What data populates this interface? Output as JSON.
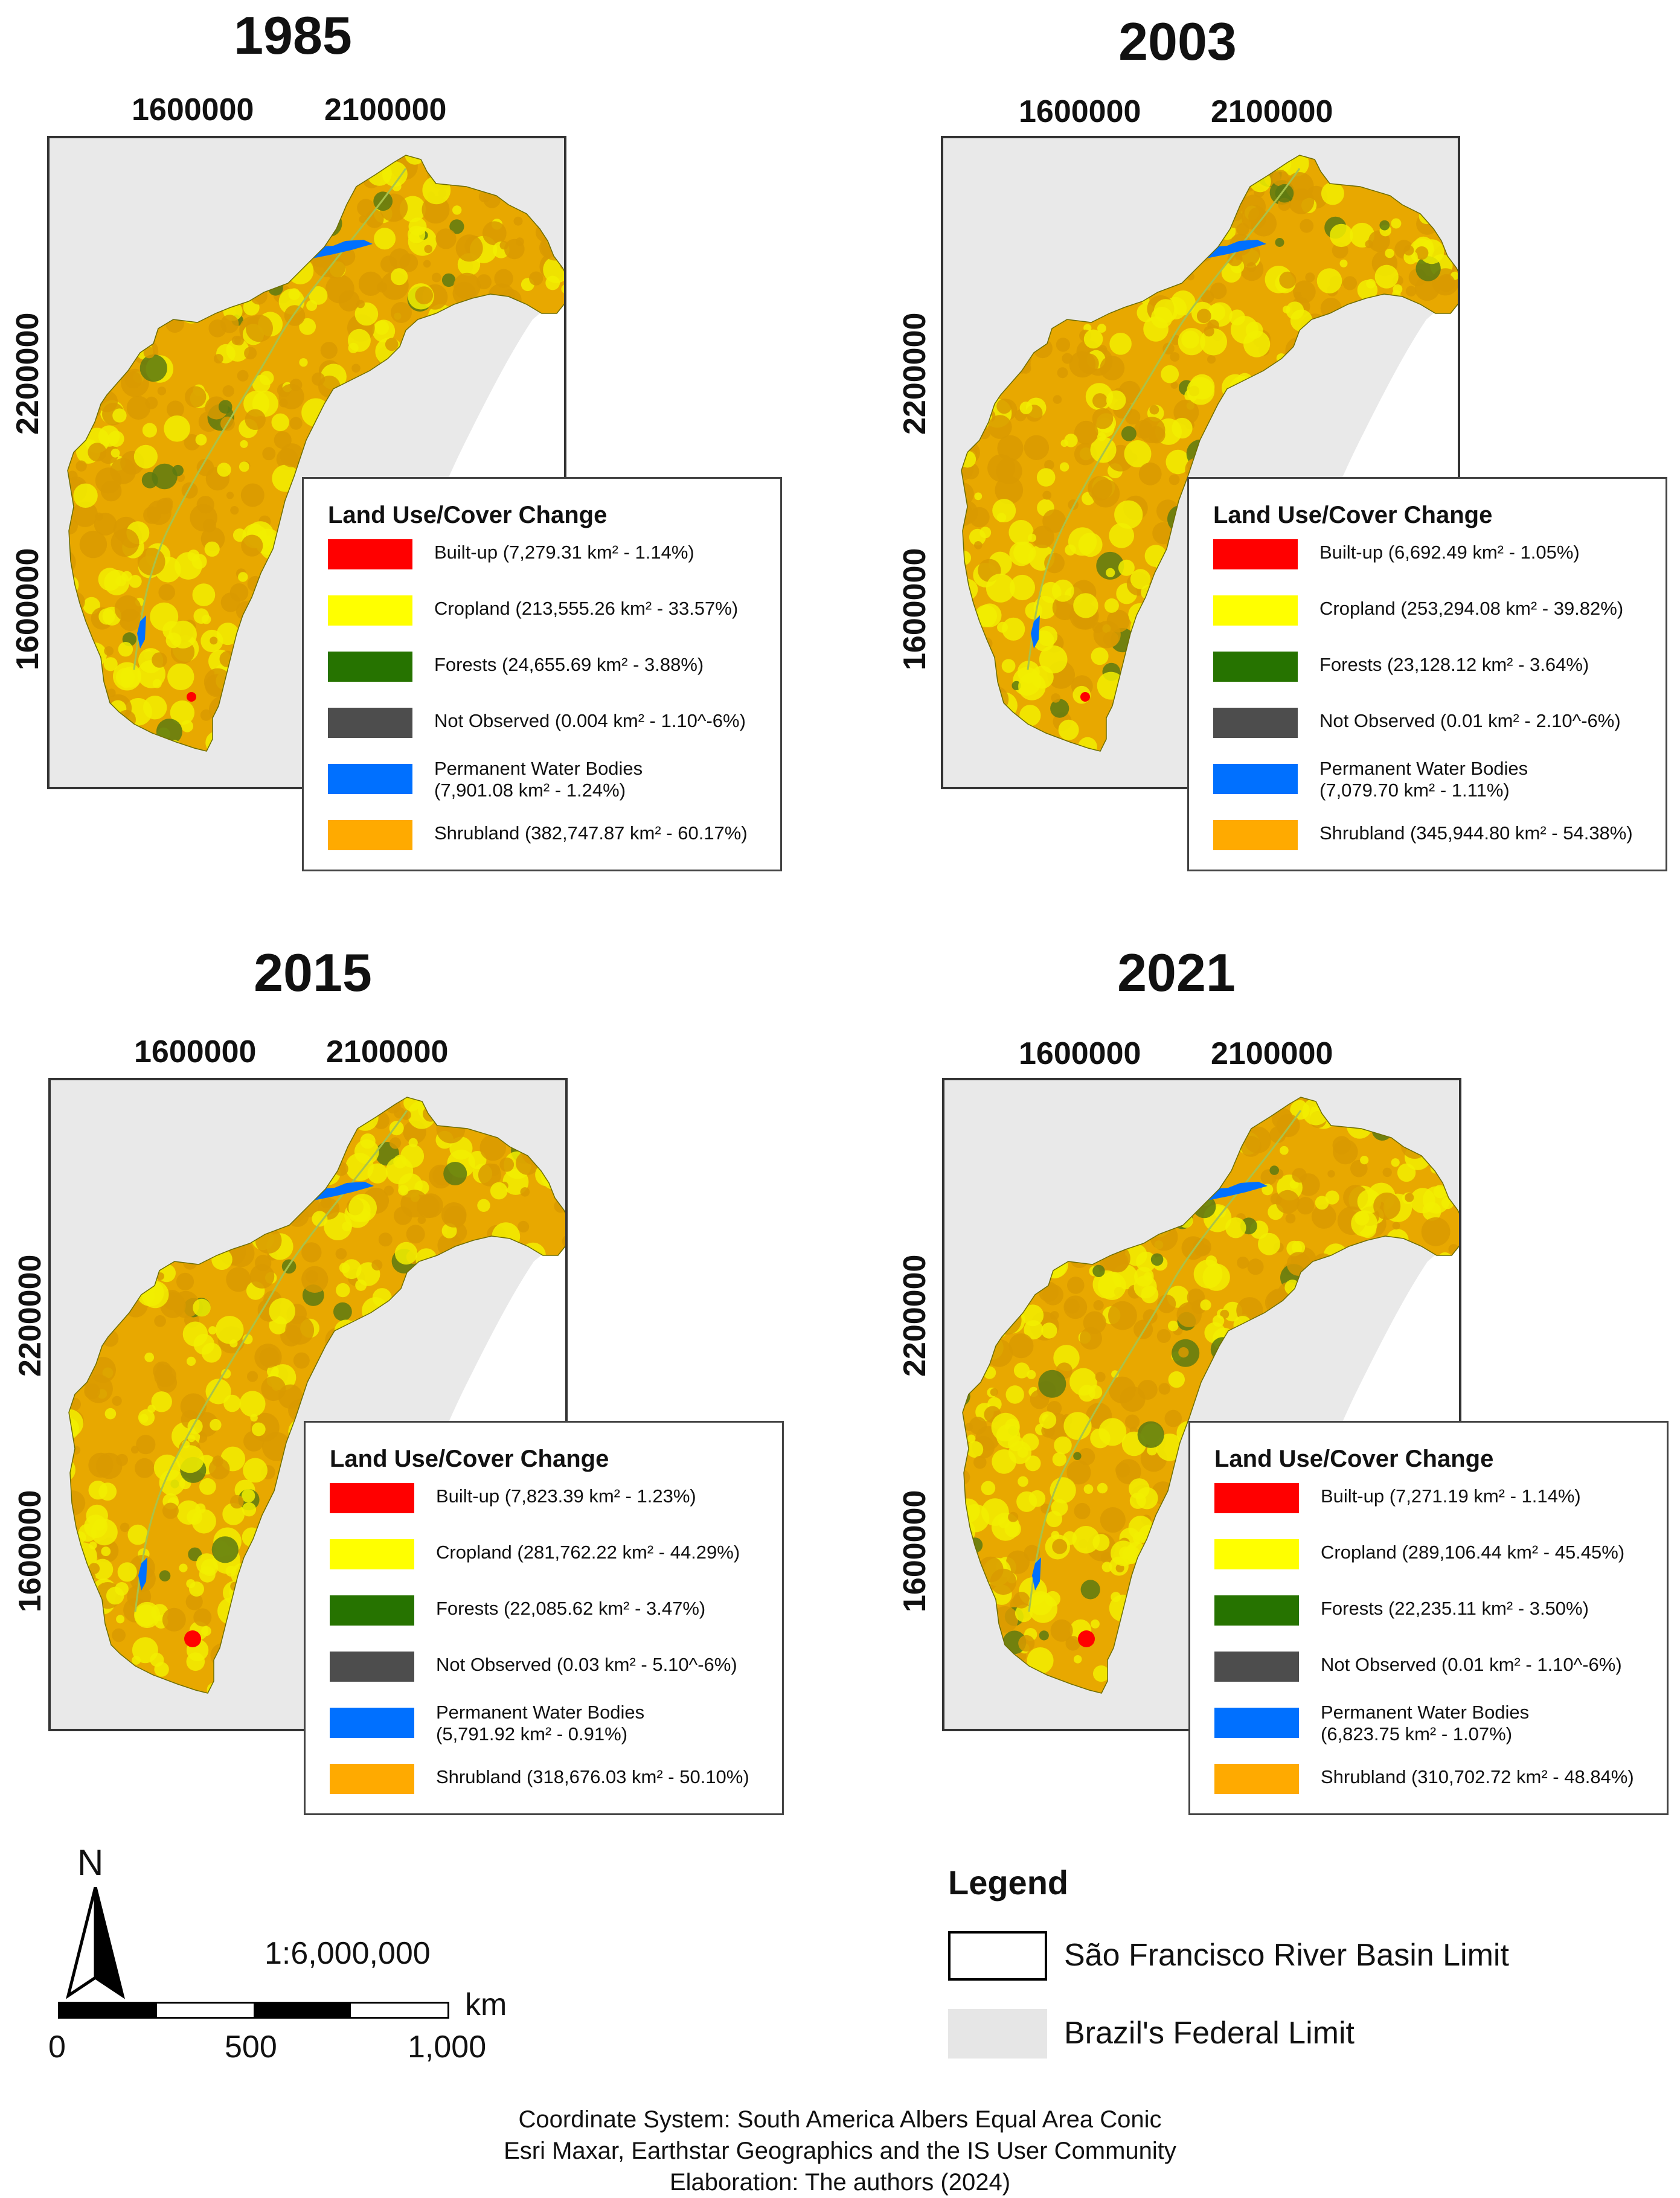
{
  "axes": {
    "x_ticks": [
      "1600000",
      "2100000"
    ],
    "y_ticks": [
      "2200000",
      "1600000"
    ]
  },
  "panels": [
    {
      "year": "1985",
      "legend_title": "Land Use/Cover Change",
      "items": [
        {
          "label": "Built-up (7,279.31 km² - 1.14%)",
          "color": "#ff0000"
        },
        {
          "label": "Cropland (213,555.26 km² - 33.57%)",
          "color": "#ffff00"
        },
        {
          "label": "Forests (24,655.69 km² - 3.88%)",
          "color": "#267300"
        },
        {
          "label": "Not Observed (0.004 km² - 1.10^-6%)",
          "color": "#4d4d4d"
        },
        {
          "label": "Permanent Water Bodies\n(7,901.08 km² - 1.24%)",
          "color": "#0070ff"
        },
        {
          "label": "Shrubland (382,747.87 km² - 60.17%)",
          "color": "#ffaa00"
        }
      ]
    },
    {
      "year": "2003",
      "legend_title": "Land Use/Cover Change",
      "items": [
        {
          "label": "Built-up (6,692.49 km² - 1.05%)",
          "color": "#ff0000"
        },
        {
          "label": "Cropland (253,294.08 km² - 39.82%)",
          "color": "#ffff00"
        },
        {
          "label": "Forests (23,128.12 km² - 3.64%)",
          "color": "#267300"
        },
        {
          "label": "Not Observed (0.01 km² - 2.10^-6%)",
          "color": "#4d4d4d"
        },
        {
          "label": "Permanent Water Bodies\n(7,079.70 km² - 1.11%)",
          "color": "#0070ff"
        },
        {
          "label": "Shrubland (345,944.80 km² - 54.38%)",
          "color": "#ffaa00"
        }
      ]
    },
    {
      "year": "2015",
      "legend_title": "Land Use/Cover Change",
      "items": [
        {
          "label": "Built-up (7,823.39 km² - 1.23%)",
          "color": "#ff0000"
        },
        {
          "label": "Cropland (281,762.22 km² - 44.29%)",
          "color": "#ffff00"
        },
        {
          "label": "Forests (22,085.62 km² - 3.47%)",
          "color": "#267300"
        },
        {
          "label": "Not Observed (0.03 km² - 5.10^-6%)",
          "color": "#4d4d4d"
        },
        {
          "label": "Permanent Water Bodies\n(5,791.92 km² - 0.91%)",
          "color": "#0070ff"
        },
        {
          "label": "Shrubland (318,676.03 km² - 50.10%)",
          "color": "#ffaa00"
        }
      ]
    },
    {
      "year": "2021",
      "legend_title": "Land Use/Cover Change",
      "items": [
        {
          "label": "Built-up (7,271.19 km² - 1.14%)",
          "color": "#ff0000"
        },
        {
          "label": "Cropland (289,106.44 km² - 45.45%)",
          "color": "#ffff00"
        },
        {
          "label": "Forests (22,235.11 km² - 3.50%)",
          "color": "#267300"
        },
        {
          "label": "Not Observed (0.01 km² - 1.10^-6%)",
          "color": "#4d4d4d"
        },
        {
          "label": "Permanent Water Bodies\n(6,823.75 km² - 1.07%)",
          "color": "#0070ff"
        },
        {
          "label": "Shrubland (310,702.72 km² - 48.84%)",
          "color": "#ffaa00"
        }
      ]
    }
  ],
  "scale": {
    "north_label": "N",
    "ratio": "1:6,000,000",
    "unit": "km",
    "labels": [
      "0",
      "500",
      "1,000"
    ]
  },
  "main_legend": {
    "title": "Legend",
    "items": [
      {
        "label": "São Francisco River Basin Limit",
        "fill": "#ffffff",
        "border": "#000000"
      },
      {
        "label": "Brazil's Federal Limit",
        "fill": "#e6e6e6",
        "border": "#e6e6e6"
      }
    ]
  },
  "credits": [
    "Coordinate System: South America Albers Equal Area Conic",
    "Esri Maxar, Earthstar Geographics and the IS User Community",
    "Elaboration: The authors (2024)"
  ]
}
